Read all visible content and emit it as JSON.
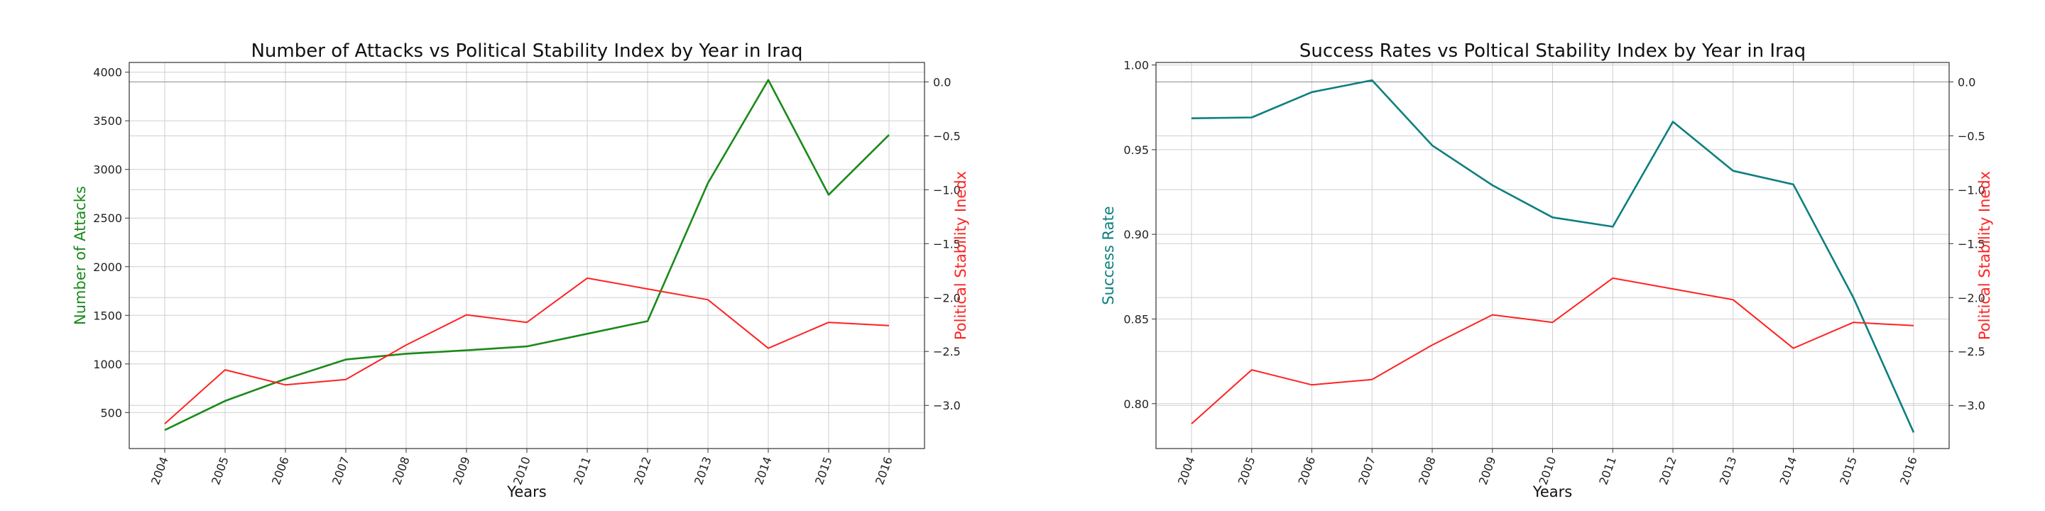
{
  "chart_data": [
    {
      "type": "line",
      "title": "Number of Attacks vs Political Stability Index by Year in Iraq",
      "xlabel": "Years",
      "ylabel": "Number of Attacks",
      "y2label": "Political Stability Inedx",
      "categories": [
        "2004",
        "2005",
        "2006",
        "2007",
        "2008",
        "2009",
        "2010",
        "2011",
        "2012",
        "2013",
        "2014",
        "2015",
        "2016"
      ],
      "ylim": [
        130,
        4100
      ],
      "y_ticks": [
        500,
        1000,
        1500,
        2000,
        2500,
        3000,
        3500,
        4000
      ],
      "y2lim": [
        -3.4,
        0.18
      ],
      "y2_ticks": [
        -3.0,
        -2.5,
        -2.0,
        -1.5,
        -1.0,
        -0.5,
        0.0
      ],
      "grid": true,
      "series": [
        {
          "axis": "left",
          "color": "#1a8a1a",
          "values": [
            320,
            620,
            845,
            1045,
            1105,
            1140,
            1180,
            1310,
            1440,
            2860,
            3920,
            2740,
            3355
          ]
        },
        {
          "axis": "right",
          "color": "#ff2222",
          "values": [
            -3.17,
            -2.67,
            -2.81,
            -2.76,
            -2.44,
            -2.16,
            -2.23,
            -1.82,
            -1.92,
            -2.02,
            -2.47,
            -2.23,
            -2.26
          ]
        }
      ]
    },
    {
      "type": "line",
      "title": "Success Rates vs Poltical Stability Index by Year in Iraq",
      "xlabel": "Years",
      "ylabel": "Success Rate",
      "y2label": "Political Stability Inedx",
      "categories": [
        "2004",
        "2005",
        "2006",
        "2007",
        "2008",
        "2009",
        "2010",
        "2011",
        "2012",
        "2013",
        "2014",
        "2015",
        "2016"
      ],
      "ylim": [
        0.7735,
        1.0015
      ],
      "y_ticks": [
        0.8,
        0.85,
        0.9,
        0.95,
        1.0
      ],
      "y2lim": [
        -3.4,
        0.18
      ],
      "y2_ticks": [
        -3.0,
        -2.5,
        -2.0,
        -1.5,
        -1.0,
        -0.5,
        0.0
      ],
      "grid": true,
      "series": [
        {
          "axis": "left",
          "color": "#0e7f7f",
          "values": [
            0.9685,
            0.969,
            0.984,
            0.991,
            0.9525,
            0.929,
            0.91,
            0.9045,
            0.9665,
            0.9375,
            0.9295,
            0.8625,
            0.783
          ]
        },
        {
          "axis": "right",
          "color": "#ff2222",
          "values": [
            -3.17,
            -2.67,
            -2.81,
            -2.76,
            -2.44,
            -2.16,
            -2.23,
            -1.82,
            -1.92,
            -2.02,
            -2.47,
            -2.23,
            -2.26
          ]
        }
      ]
    }
  ],
  "colors": {
    "left_axis_label_1": "#1a8a1a",
    "left_axis_label_2": "#0e7f7f",
    "right_axis_label": "#ff2222"
  }
}
